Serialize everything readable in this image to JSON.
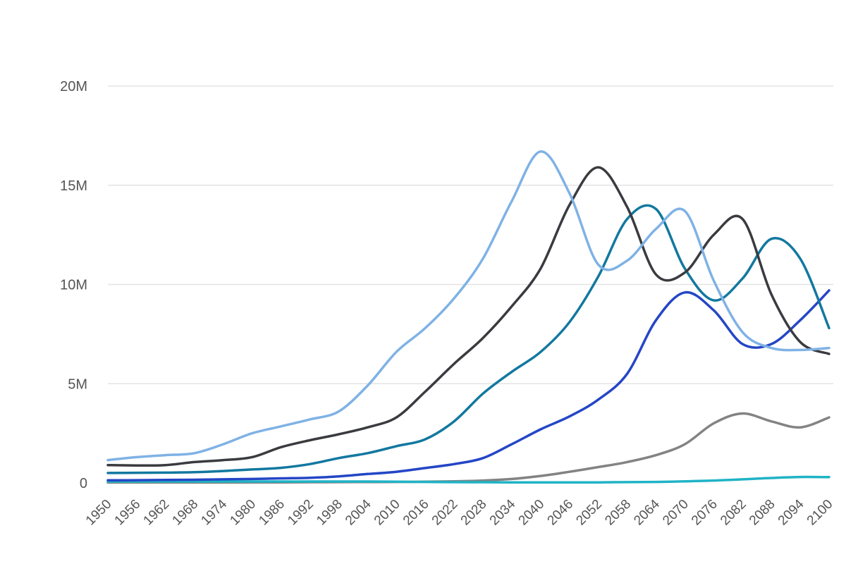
{
  "chart_data": {
    "type": "line",
    "title": "",
    "xlabel": "",
    "ylabel": "",
    "xlim": [
      1950,
      2100
    ],
    "ylim": [
      0,
      20000000
    ],
    "grid": true,
    "y_ticks": [
      {
        "value": 0,
        "label": "0"
      },
      {
        "value": 5000000,
        "label": "5M"
      },
      {
        "value": 10000000,
        "label": "10M"
      },
      {
        "value": 15000000,
        "label": "15M"
      },
      {
        "value": 20000000,
        "label": "20M"
      }
    ],
    "x_ticks": [
      1950,
      1956,
      1962,
      1968,
      1974,
      1980,
      1986,
      1992,
      1998,
      2004,
      2010,
      2016,
      2022,
      2028,
      2034,
      2040,
      2046,
      2052,
      2058,
      2064,
      2070,
      2076,
      2082,
      2088,
      2094,
      2100
    ],
    "x": [
      1950,
      1956,
      1962,
      1968,
      1974,
      1980,
      1986,
      1992,
      1998,
      2004,
      2010,
      2016,
      2022,
      2028,
      2034,
      2040,
      2046,
      2052,
      2058,
      2064,
      2070,
      2076,
      2082,
      2088,
      2094,
      2100
    ],
    "series": [
      {
        "color": "#7fb2e5",
        "values": [
          1150000,
          1300000,
          1400000,
          1500000,
          1950000,
          2500000,
          2850000,
          3200000,
          3600000,
          4900000,
          6600000,
          7800000,
          9300000,
          11300000,
          14200000,
          16700000,
          14600000,
          11000000,
          11200000,
          12800000,
          13700000,
          10200000,
          7600000,
          6800000,
          6700000,
          6800000
        ]
      },
      {
        "color": "#3a3b3f",
        "values": [
          900000,
          880000,
          900000,
          1050000,
          1150000,
          1300000,
          1800000,
          2150000,
          2450000,
          2800000,
          3300000,
          4600000,
          6000000,
          7300000,
          8900000,
          10800000,
          14000000,
          15900000,
          13900000,
          10500000,
          10600000,
          12500000,
          13300000,
          9500000,
          7100000,
          6500000
        ]
      },
      {
        "color": "#12789f",
        "values": [
          500000,
          510000,
          520000,
          540000,
          600000,
          680000,
          760000,
          950000,
          1250000,
          1500000,
          1850000,
          2200000,
          3100000,
          4500000,
          5600000,
          6600000,
          8100000,
          10400000,
          13300000,
          13800000,
          10800000,
          9200000,
          10300000,
          12300000,
          11300000,
          7800000
        ]
      },
      {
        "color": "#2446c6",
        "values": [
          130000,
          140000,
          150000,
          160000,
          180000,
          200000,
          230000,
          260000,
          330000,
          450000,
          560000,
          750000,
          950000,
          1250000,
          1950000,
          2700000,
          3350000,
          4200000,
          5500000,
          8200000,
          9600000,
          8700000,
          7000000,
          7000000,
          8200000,
          9700000
        ]
      },
      {
        "color": "#838383",
        "values": [
          20000,
          20000,
          20000,
          20000,
          20000,
          25000,
          30000,
          35000,
          40000,
          45000,
          50000,
          60000,
          80000,
          120000,
          200000,
          350000,
          560000,
          800000,
          1050000,
          1400000,
          1950000,
          3000000,
          3500000,
          3100000,
          2800000,
          3300000
        ]
      },
      {
        "color": "#20b3c6",
        "values": [
          70000,
          70000,
          70000,
          70000,
          70000,
          70000,
          70000,
          70000,
          70000,
          70000,
          60000,
          50000,
          40000,
          35000,
          30000,
          30000,
          30000,
          30000,
          40000,
          50000,
          80000,
          120000,
          180000,
          250000,
          300000,
          290000
        ]
      }
    ]
  }
}
